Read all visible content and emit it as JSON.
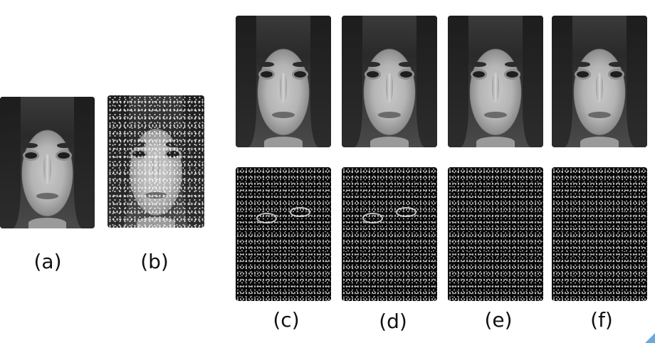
{
  "labels": {
    "a": "(a)",
    "b": "(b)",
    "c": "(c)",
    "d": "(d)",
    "e": "(e)",
    "f": "(f)"
  },
  "images": {
    "a": "original-face",
    "b": "noisy-face",
    "c": [
      "restored-face",
      "residual-map"
    ],
    "d": [
      "restored-face",
      "residual-map"
    ],
    "e": [
      "restored-face",
      "residual-map"
    ],
    "f": [
      "restored-face",
      "residual-map"
    ]
  },
  "colors": {
    "background": "#ffffff",
    "label_text": "#111111",
    "corner_accent": "#6fa8dc"
  }
}
